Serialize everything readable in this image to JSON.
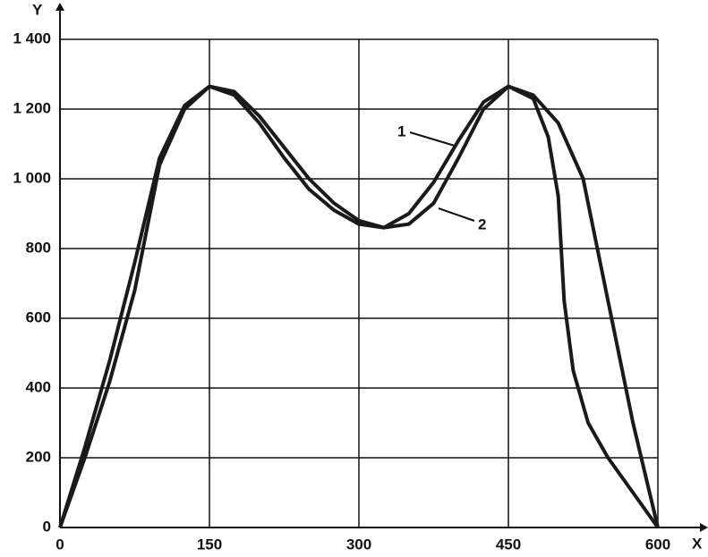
{
  "chart_data": {
    "type": "line",
    "x_label": "X",
    "y_label": "Y",
    "xlim": [
      0,
      600
    ],
    "ylim": [
      0,
      1400
    ],
    "xticks": [
      0,
      150,
      300,
      450,
      600
    ],
    "yticks": [
      0,
      200,
      400,
      600,
      800,
      {
        "value": 1000,
        "label": "1 000"
      },
      {
        "value": 1200,
        "label": "1 200"
      },
      {
        "value": 1400,
        "label": "1 400"
      }
    ],
    "grid": true,
    "annotations": [
      "1",
      "2"
    ],
    "series": [
      {
        "color": "#1a1a1a",
        "x": [
          0,
          25,
          50,
          75,
          100,
          125,
          150,
          175,
          200,
          225,
          250,
          275,
          300,
          325,
          350,
          375,
          400,
          425,
          450,
          475,
          490,
          500,
          506,
          515,
          530,
          550,
          575,
          600
        ],
        "values": [
          0,
          230,
          480,
          760,
          1060,
          1210,
          1265,
          1240,
          1160,
          1060,
          970,
          910,
          870,
          860,
          900,
          990,
          1110,
          1220,
          1265,
          1230,
          1120,
          950,
          650,
          450,
          300,
          200,
          100,
          0
        ]
      },
      {
        "color": "#1a1a1a",
        "x": [
          0,
          25,
          50,
          75,
          100,
          125,
          150,
          175,
          200,
          225,
          250,
          275,
          300,
          325,
          350,
          375,
          400,
          425,
          450,
          475,
          500,
          525,
          550,
          575,
          600
        ],
        "values": [
          0,
          200,
          420,
          680,
          1040,
          1200,
          1265,
          1250,
          1180,
          1090,
          1000,
          930,
          880,
          860,
          870,
          930,
          1060,
          1200,
          1265,
          1240,
          1160,
          1000,
          650,
          300,
          0
        ]
      }
    ]
  }
}
